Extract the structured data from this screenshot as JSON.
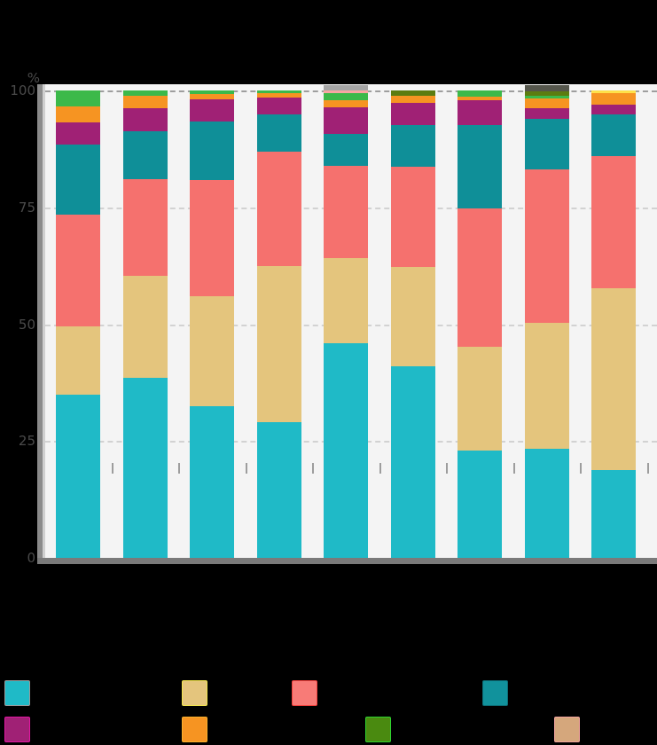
{
  "title": "",
  "note": "Title, x-axis category labels and legend label texts are rendered black-on-black (not legible in the screenshot); only the colored graphics and y-axis are visible.",
  "yaxis": {
    "unit": "%",
    "ticks": [
      "100",
      "75",
      "50",
      "25",
      "0"
    ]
  },
  "xaxis": {
    "label": ""
  },
  "legend": {
    "items": [
      {
        "label": "",
        "color": "#1fbac7",
        "border": "#9a9a9a"
      },
      {
        "label": "",
        "color": "#e4c57d",
        "border": "#f1e44c"
      },
      {
        "label": "",
        "color": "#f87b77",
        "border": "#f2413d"
      },
      {
        "label": "",
        "color": "#11929c",
        "border": "#0d6d75"
      },
      {
        "label": "",
        "color": "#a02175",
        "border": "#e316a3"
      },
      {
        "label": "",
        "color": "#f69422",
        "border": "#f9b02c"
      },
      {
        "label": "",
        "color": "#4a8a10",
        "border": "#2fd32f"
      },
      {
        "label": "",
        "color": "#d5a77c",
        "border": "#f2a39e"
      }
    ]
  },
  "chart_data": {
    "type": "bar",
    "stacked": true,
    "orientation": "vertical",
    "categories": [
      "",
      "",
      "",
      "",
      "",
      "",
      "",
      "",
      ""
    ],
    "ylim": [
      0,
      100
    ],
    "grid": "dashed horizontal lines at 25/50/75/100",
    "legend_position": "bottom, 2 rows x 4 columns",
    "series": [
      {
        "name": "cyan",
        "color": "#1fbac7",
        "values": [
          35.0,
          38.5,
          32.5,
          29.0,
          46.0,
          41.0,
          22.9,
          23.4,
          18.7
        ]
      },
      {
        "name": "tan",
        "color": "#e4c57d",
        "values": [
          14.5,
          21.8,
          23.5,
          33.5,
          18.1,
          21.3,
          22.3,
          26.9,
          39.0
        ]
      },
      {
        "name": "red",
        "color": "#f5716e",
        "values": [
          24.0,
          20.8,
          24.8,
          24.5,
          19.8,
          21.3,
          29.6,
          32.8,
          28.3
        ]
      },
      {
        "name": "dark-teal",
        "color": "#0f8f98",
        "values": [
          15.0,
          10.2,
          12.5,
          7.8,
          6.8,
          9.0,
          17.9,
          10.8,
          8.9
        ]
      },
      {
        "name": "purple",
        "color": "#a02175",
        "values": [
          4.6,
          5.0,
          4.9,
          3.7,
          5.7,
          4.7,
          5.2,
          2.4,
          2.0
        ]
      },
      {
        "name": "orange",
        "color": "#f69422",
        "values": [
          3.5,
          2.5,
          1.1,
          1.0,
          1.5,
          1.6,
          0.7,
          2.0,
          2.5
        ]
      },
      {
        "name": "green",
        "color": "#3cb94a",
        "values": [
          3.4,
          1.2,
          0.7,
          0.5,
          1.6,
          0.0,
          1.4,
          0.5,
          0.0
        ]
      },
      {
        "name": "olive",
        "color": "#5c7c10",
        "values": [
          0,
          0,
          0,
          0,
          0,
          1.1,
          0,
          1.1,
          0
        ]
      },
      {
        "name": "salmon",
        "color": "#f9a6a2",
        "values": [
          0,
          0,
          0,
          0,
          0.5,
          0,
          0,
          0,
          0
        ]
      },
      {
        "name": "yellow",
        "color": "#fee14a",
        "values": [
          0,
          0,
          0,
          0,
          0,
          0,
          0,
          0,
          0.6
        ]
      },
      {
        "name": "gray",
        "color": "#a5a5a5",
        "values": [
          0,
          0,
          0,
          0,
          1.2,
          0,
          0,
          0,
          0
        ]
      },
      {
        "name": "dark-gray",
        "color": "#55564c",
        "values": [
          0,
          0,
          0,
          0,
          0,
          0,
          0,
          1.3,
          0
        ]
      }
    ]
  }
}
